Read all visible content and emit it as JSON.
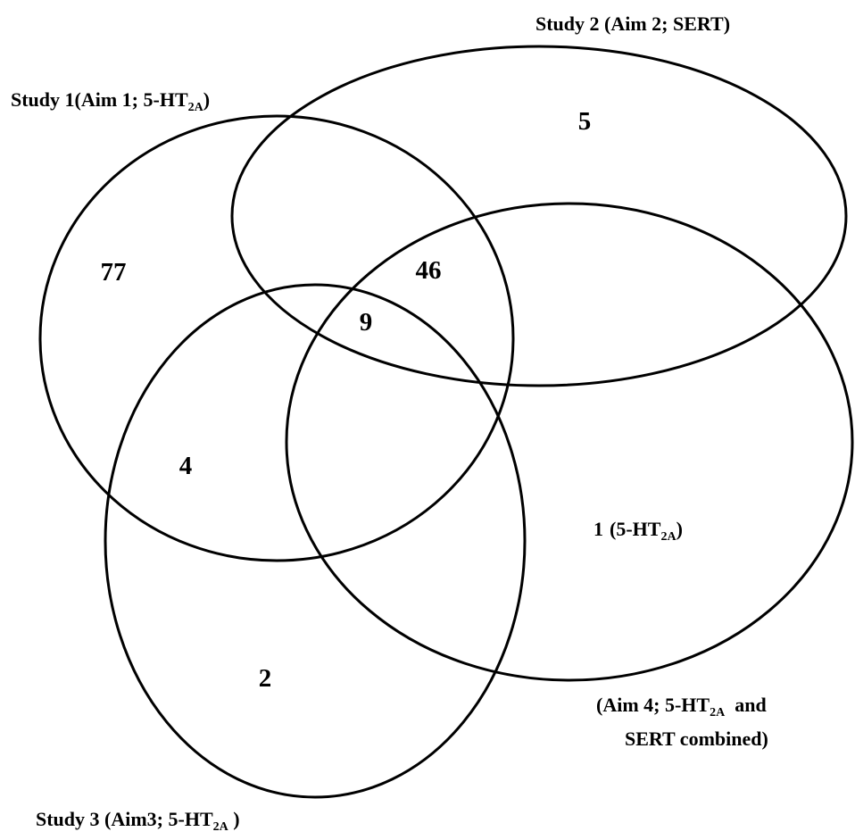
{
  "sets": [
    {
      "label": {
        "text": "Study 1(Aim 1; 5-HT",
        "sub": "2A",
        "after": ")"
      }
    },
    {
      "label": {
        "text": "Study 2 (Aim 2; SERT)"
      }
    },
    {
      "label": {
        "text": "Study 3 (Aim3; 5-HT",
        "sub": "2A",
        "after": " )"
      }
    },
    {
      "label": {
        "line1": {
          "text": "(Aim 4; 5-HT",
          "sub": "2A",
          "after": "  and"
        },
        "line2": "SERT combined)"
      }
    }
  ],
  "regions": [
    {
      "count": 5
    },
    {
      "count": 77
    },
    {
      "count": 46
    },
    {
      "count": 9
    },
    {
      "count": 4
    },
    {
      "count": 1,
      "note": {
        "text": "(5-HT",
        "sub": "2A",
        "after": ")"
      }
    },
    {
      "count": 2
    }
  ]
}
